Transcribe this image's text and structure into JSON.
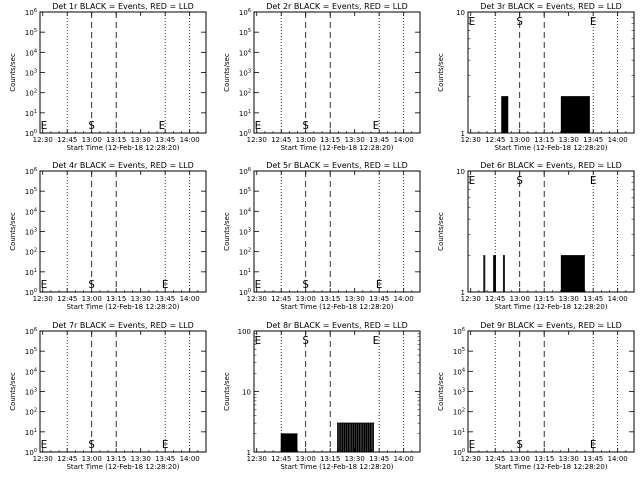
{
  "figure": {
    "time_ticks": [
      "12:30",
      "12:45",
      "13:00",
      "13:15",
      "13:30",
      "13:45",
      "14:00"
    ],
    "xlabel": "Start Time (12-Feb-18 12:28:20)",
    "ylabel": "Counts/sec",
    "marker_start": "S",
    "marker_end": "E",
    "color_events": "#000000",
    "color_lld": "#ff0000"
  },
  "chart_data": [
    {
      "type": "line",
      "title": "Det 1r BLACK = Events, RED = LLD",
      "ylabel": "Counts/sec",
      "xlabel": "Start Time (12-Feb-18 12:28:20)",
      "x_range": [
        "12:28:20",
        "14:10:00"
      ],
      "y_scale": "log",
      "ylim": [
        1,
        1000000
      ],
      "y_ticks": [
        {
          "b": "10",
          "e": "0"
        },
        {
          "b": "10",
          "e": "1"
        },
        {
          "b": "10",
          "e": "2"
        },
        {
          "b": "10",
          "e": "3"
        },
        {
          "b": "10",
          "e": "4"
        },
        {
          "b": "10",
          "e": "5"
        },
        {
          "b": "10",
          "e": "6"
        }
      ],
      "events": [],
      "marker_positions": {
        "E_left": "12:28:45",
        "S": "13:00",
        "E_right": "13:43"
      }
    },
    {
      "type": "line",
      "title": "Det 2r BLACK = Events, RED = LLD",
      "ylabel": "Counts/sec",
      "xlabel": "Start Time (12-Feb-18 12:28:20)",
      "x_range": [
        "12:28:20",
        "14:10:00"
      ],
      "y_scale": "log",
      "ylim": [
        1,
        1000000
      ],
      "y_ticks": [
        {
          "b": "10",
          "e": "0"
        },
        {
          "b": "10",
          "e": "1"
        },
        {
          "b": "10",
          "e": "2"
        },
        {
          "b": "10",
          "e": "3"
        },
        {
          "b": "10",
          "e": "4"
        },
        {
          "b": "10",
          "e": "5"
        },
        {
          "b": "10",
          "e": "6"
        }
      ],
      "events": [],
      "marker_positions": {
        "E_left": "12:28:45",
        "S": "13:00",
        "E_right": "13:43"
      }
    },
    {
      "type": "line",
      "title": "Det 3r BLACK = Events, RED = LLD",
      "ylabel": "Counts/sec",
      "xlabel": "Start Time (12-Feb-18 12:28:20)",
      "x_range": [
        "12:28:20",
        "14:10:00"
      ],
      "y_scale": "log",
      "ylim": [
        1,
        10
      ],
      "y_ticks": [
        {
          "b": "1",
          "e": ""
        },
        {
          "b": "10",
          "e": ""
        }
      ],
      "events": [
        {
          "t0": "12:49:00",
          "t1": "12:53:00",
          "level": 2,
          "n": 5
        },
        {
          "t0": "13:25:30",
          "t1": "13:43:00",
          "level": 2,
          "n": 22
        }
      ],
      "marker_positions": {
        "E_left": "12:28:45",
        "S": "13:00",
        "E_right": "13:45"
      }
    },
    {
      "type": "line",
      "title": "Det 4r BLACK = Events, RED = LLD",
      "ylabel": "Counts/sec",
      "xlabel": "Start Time (12-Feb-18 12:28:20)",
      "x_range": [
        "12:28:20",
        "14:10:00"
      ],
      "y_scale": "log",
      "ylim": [
        1,
        1000000
      ],
      "y_ticks": [
        {
          "b": "10",
          "e": "0"
        },
        {
          "b": "10",
          "e": "1"
        },
        {
          "b": "10",
          "e": "2"
        },
        {
          "b": "10",
          "e": "3"
        },
        {
          "b": "10",
          "e": "4"
        },
        {
          "b": "10",
          "e": "5"
        },
        {
          "b": "10",
          "e": "6"
        }
      ],
      "events": [],
      "marker_positions": {
        "E_left": "12:28:45",
        "S": "13:00",
        "E_right": "13:45"
      }
    },
    {
      "type": "line",
      "title": "Det 5r BLACK = Events, RED = LLD",
      "ylabel": "Counts/sec",
      "xlabel": "Start Time (12-Feb-18 12:28:20)",
      "x_range": [
        "12:28:20",
        "14:10:00"
      ],
      "y_scale": "log",
      "ylim": [
        1,
        1000000
      ],
      "y_ticks": [
        {
          "b": "10",
          "e": "0"
        },
        {
          "b": "10",
          "e": "1"
        },
        {
          "b": "10",
          "e": "2"
        },
        {
          "b": "10",
          "e": "3"
        },
        {
          "b": "10",
          "e": "4"
        },
        {
          "b": "10",
          "e": "5"
        },
        {
          "b": "10",
          "e": "6"
        }
      ],
      "events": [],
      "marker_positions": {
        "E_left": "12:28:45",
        "S": "13:00",
        "E_right": "13:45"
      }
    },
    {
      "type": "line",
      "title": "Det 6r BLACK = Events, RED = LLD",
      "ylabel": "Counts/sec",
      "xlabel": "Start Time (12-Feb-18 12:28:20)",
      "x_range": [
        "12:28:20",
        "14:10:00"
      ],
      "y_scale": "log",
      "ylim": [
        1,
        10
      ],
      "y_ticks": [
        {
          "b": "1",
          "e": ""
        },
        {
          "b": "10",
          "e": ""
        }
      ],
      "events": [
        {
          "t0": "12:38:00",
          "t1": "12:39:00",
          "level": 2,
          "n": 1
        },
        {
          "t0": "12:44:00",
          "t1": "12:45:30",
          "level": 2,
          "n": 2
        },
        {
          "t0": "12:50:00",
          "t1": "12:51:00",
          "level": 2,
          "n": 1
        },
        {
          "t0": "13:25:30",
          "t1": "13:40:00",
          "level": 2,
          "n": 16
        }
      ],
      "marker_positions": {
        "E_left": "12:28:45",
        "S": "13:00",
        "E_right": "13:45"
      }
    },
    {
      "type": "line",
      "title": "Det 7r BLACK = Events, RED = LLD",
      "ylabel": "Counts/sec",
      "xlabel": "Start Time (12-Feb-18 12:28:20)",
      "x_range": [
        "12:28:20",
        "14:10:00"
      ],
      "y_scale": "log",
      "ylim": [
        1,
        1000000
      ],
      "y_ticks": [
        {
          "b": "10",
          "e": "0"
        },
        {
          "b": "10",
          "e": "1"
        },
        {
          "b": "10",
          "e": "2"
        },
        {
          "b": "10",
          "e": "3"
        },
        {
          "b": "10",
          "e": "4"
        },
        {
          "b": "10",
          "e": "5"
        },
        {
          "b": "10",
          "e": "6"
        }
      ],
      "events": [],
      "marker_positions": {
        "E_left": "12:28:45",
        "S": "13:00",
        "E_right": "13:45"
      }
    },
    {
      "type": "line",
      "title": "Det 8r BLACK = Events, RED = LLD",
      "ylabel": "Counts/sec",
      "xlabel": "Start Time (12-Feb-18 12:28:20)",
      "x_range": [
        "12:28:20",
        "14:10:00"
      ],
      "y_scale": "log",
      "ylim": [
        1,
        100
      ],
      "y_ticks": [
        {
          "b": "1",
          "e": ""
        },
        {
          "b": "10",
          "e": ""
        },
        {
          "b": "100",
          "e": ""
        }
      ],
      "events": [
        {
          "t0": "12:45:00",
          "t1": "12:55:00",
          "level": 2,
          "n": 12
        },
        {
          "t0": "13:19:30",
          "t1": "13:42:00",
          "level": 3,
          "n": 20
        }
      ],
      "marker_positions": {
        "E_left": "12:28:45",
        "S": "13:00",
        "E_right": "13:43"
      }
    },
    {
      "type": "line",
      "title": "Det 9r BLACK = Events, RED = LLD",
      "ylabel": "Counts/sec",
      "xlabel": "Start Time (12-Feb-18 12:28:20)",
      "x_range": [
        "12:28:20",
        "14:10:00"
      ],
      "y_scale": "log",
      "ylim": [
        1,
        1000000
      ],
      "y_ticks": [
        {
          "b": "10",
          "e": "0"
        },
        {
          "b": "10",
          "e": "1"
        },
        {
          "b": "10",
          "e": "2"
        },
        {
          "b": "10",
          "e": "3"
        },
        {
          "b": "10",
          "e": "4"
        },
        {
          "b": "10",
          "e": "5"
        },
        {
          "b": "10",
          "e": "6"
        }
      ],
      "events": [],
      "marker_positions": {
        "E_left": "12:28:45",
        "S": "13:00",
        "E_right": "13:45"
      }
    }
  ]
}
